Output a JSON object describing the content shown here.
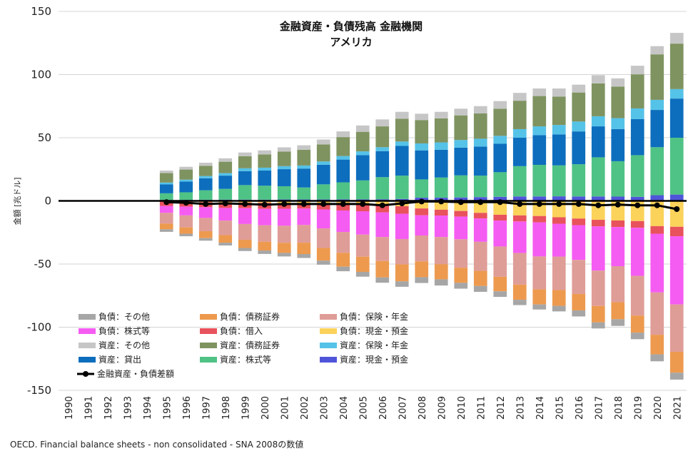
{
  "chart_data": {
    "type": "bar",
    "title": "金融資産・負債残高 金融機関",
    "subtitle": "アメリカ",
    "ylabel": "金額 [兆ドル]",
    "xlabel": "",
    "ylim": [
      -150,
      150
    ],
    "yticks": [
      150,
      100,
      50,
      0,
      -50,
      -100,
      -150
    ],
    "grid": true,
    "legend_position": "bottom-left",
    "categories": [
      "1990",
      "1991",
      "1992",
      "1993",
      "1994",
      "1995",
      "1996",
      "1997",
      "1998",
      "1999",
      "2000",
      "2001",
      "2002",
      "2003",
      "2004",
      "2005",
      "2006",
      "2007",
      "2008",
      "2009",
      "2010",
      "2011",
      "2012",
      "2013",
      "2014",
      "2015",
      "2016",
      "2017",
      "2018",
      "2019",
      "2020",
      "2021"
    ],
    "series": [
      {
        "name": "資産：現金・預金",
        "color": "#4f55d9",
        "group": "asset",
        "values": [
          null,
          null,
          null,
          null,
          null,
          0.8,
          0.8,
          0.9,
          1.0,
          1.0,
          1.0,
          1.1,
          1.1,
          1.1,
          1.2,
          1.2,
          1.3,
          1.5,
          2.5,
          2.5,
          2.7,
          3.0,
          3.2,
          3.5,
          3.5,
          3.6,
          3.5,
          3.5,
          3.4,
          3.2,
          4.5,
          5.0
        ]
      },
      {
        "name": "資産：株式等",
        "color": "#4fc285",
        "group": "asset",
        "values": [
          null,
          null,
          null,
          null,
          null,
          5.2,
          6.0,
          7.5,
          8.5,
          11.5,
          11.0,
          10.5,
          9.5,
          12.0,
          13.5,
          15.0,
          17.5,
          18.5,
          14.5,
          16.0,
          17.5,
          17.0,
          19.5,
          24.0,
          25.0,
          24.5,
          25.5,
          31.0,
          28.0,
          33.0,
          38.0,
          45.0
        ]
      },
      {
        "name": "資産：貸出",
        "color": "#0d6ebd",
        "group": "asset",
        "values": [
          null,
          null,
          null,
          null,
          null,
          7.0,
          8.5,
          9.5,
          10.5,
          11.0,
          12.0,
          13.5,
          15.0,
          15.5,
          18.0,
          20.0,
          20.5,
          23.5,
          23.0,
          22.0,
          22.0,
          23.0,
          22.5,
          22.5,
          23.5,
          24.5,
          26.0,
          24.5,
          25.5,
          28.5,
          29.5,
          31.0
        ]
      },
      {
        "name": "資産：保険・年金",
        "color": "#55c2e8",
        "group": "asset",
        "values": [
          null,
          null,
          null,
          null,
          null,
          1.5,
          1.5,
          1.8,
          2.0,
          2.3,
          2.3,
          2.4,
          2.4,
          2.6,
          2.8,
          3.0,
          3.2,
          3.5,
          5.5,
          5.8,
          6.0,
          6.2,
          6.3,
          6.8,
          7.0,
          7.5,
          7.8,
          8.0,
          8.6,
          8.5,
          8.0,
          7.5
        ]
      },
      {
        "name": "資産：債務証券",
        "color": "#7f9360",
        "group": "asset",
        "values": [
          null,
          null,
          null,
          null,
          null,
          7.5,
          8.0,
          8.0,
          9.0,
          9.5,
          10.5,
          11.5,
          12.5,
          13.5,
          15.0,
          15.5,
          16.5,
          18.0,
          18.5,
          19.0,
          19.5,
          20.0,
          21.5,
          22.5,
          24.0,
          22.5,
          23.0,
          26.0,
          25.0,
          27.0,
          36.0,
          36.0
        ]
      },
      {
        "name": "資産：その他",
        "color": "#c6c6c6",
        "group": "asset",
        "values": [
          null,
          null,
          null,
          null,
          null,
          2.0,
          2.2,
          2.5,
          2.7,
          3.0,
          3.2,
          3.4,
          3.5,
          3.9,
          4.5,
          5.0,
          5.5,
          5.5,
          5.0,
          5.2,
          5.3,
          5.8,
          6.0,
          6.2,
          6.0,
          6.4,
          6.2,
          6.5,
          6.5,
          6.8,
          6.5,
          8.5
        ]
      },
      {
        "name": "負債：現金・預金",
        "color": "#fbd25a",
        "group": "liability",
        "values": [
          null,
          null,
          null,
          null,
          null,
          -0.5,
          -0.7,
          -1.0,
          -1.2,
          -1.3,
          -1.5,
          -1.7,
          -1.9,
          -2.2,
          -2.6,
          -3.0,
          -3.5,
          -4.2,
          -6.0,
          -7.0,
          -8.0,
          -9.5,
          -11.0,
          -11.5,
          -12.0,
          -13.0,
          -14.0,
          -15.0,
          -15.5,
          -16.0,
          -20.0,
          -20.5
        ]
      },
      {
        "name": "負債：借入",
        "color": "#e8525c",
        "group": "liability",
        "values": [
          null,
          null,
          null,
          null,
          null,
          -3.5,
          -3.8,
          -4.0,
          -4.4,
          -4.5,
          -4.8,
          -4.5,
          -4.2,
          -4.6,
          -5.0,
          -5.2,
          -5.6,
          -6.0,
          -5.4,
          -4.6,
          -4.4,
          -4.4,
          -4.6,
          -4.8,
          -5.0,
          -5.1,
          -5.2,
          -5.2,
          -5.2,
          -5.3,
          -6.0,
          -7.5
        ]
      },
      {
        "name": "負債：株式等",
        "color": "#f55cf2",
        "group": "liability",
        "values": [
          null,
          null,
          null,
          null,
          null,
          -5.5,
          -7.0,
          -8.5,
          -10.0,
          -12.5,
          -13.0,
          -13.5,
          -13.0,
          -15.0,
          -17.0,
          -18.5,
          -19.5,
          -20.0,
          -16.0,
          -17.0,
          -18.0,
          -18.5,
          -20.5,
          -25.0,
          -27.0,
          -26.0,
          -27.5,
          -35.0,
          -31.0,
          -38.0,
          -46.5,
          -54.0
        ]
      },
      {
        "name": "負債：保険・年金",
        "color": "#df9d98",
        "group": "liability",
        "values": [
          null,
          null,
          null,
          null,
          null,
          -8.5,
          -9.5,
          -10.5,
          -11.5,
          -12.5,
          -13.0,
          -13.5,
          -14.0,
          -15.5,
          -16.5,
          -17.5,
          -19.0,
          -20.0,
          -20.5,
          -21.5,
          -22.5,
          -23.0,
          -24.0,
          -25.0,
          -26.0,
          -26.5,
          -27.0,
          -28.0,
          -28.5,
          -31.5,
          -33.5,
          -37.5
        ]
      },
      {
        "name": "負債：債務証券",
        "color": "#ed9a4f",
        "group": "liability",
        "values": [
          null,
          null,
          null,
          null,
          null,
          -4.5,
          -5.0,
          -5.5,
          -6.0,
          -6.5,
          -7.0,
          -8.0,
          -9.0,
          -10.0,
          -11.0,
          -12.0,
          -13.0,
          -13.5,
          -12.5,
          -12.0,
          -12.0,
          -12.0,
          -11.5,
          -12.0,
          -12.0,
          -12.5,
          -13.0,
          -13.0,
          -13.5,
          -13.5,
          -15.5,
          -16.5
        ]
      },
      {
        "name": "負債：その他",
        "color": "#a6a6a6",
        "group": "liability",
        "values": [
          null,
          null,
          null,
          null,
          null,
          -2.0,
          -2.0,
          -2.0,
          -2.2,
          -2.4,
          -2.7,
          -2.8,
          -3.1,
          -3.2,
          -3.6,
          -3.8,
          -4.2,
          -4.3,
          -4.6,
          -4.9,
          -4.6,
          -4.6,
          -4.4,
          -4.2,
          -4.0,
          -4.4,
          -4.8,
          -4.8,
          -5.3,
          -5.2,
          -5.5,
          -5.5
        ]
      }
    ],
    "net": {
      "name": "金融資産・負債差額",
      "color": "#000000",
      "values": [
        null,
        null,
        null,
        null,
        null,
        -1.0,
        -1.5,
        -2.5,
        -2.0,
        -2.5,
        -3.0,
        -2.5,
        -2.5,
        -2.5,
        -2.5,
        -2.5,
        -3.5,
        -2.0,
        -0.5,
        -0.5,
        -1.0,
        -1.0,
        -1.0,
        -2.5,
        -2.5,
        -2.5,
        -2.5,
        -3.5,
        -3.0,
        -3.5,
        -3.5,
        -6.5
      ]
    },
    "legend_order": [
      "負債：その他",
      "負債：債務証券",
      "負債：保険・年金",
      "負債：株式等",
      "負債：借入",
      "負債：現金・預金",
      "資産：その他",
      "資産：債務証券",
      "資産：保険・年金",
      "資産：貸出",
      "資産：株式等",
      "資産：現金・預金",
      "金融資産・負債差額"
    ]
  },
  "source_note": "OECD. Financial balance sheets - non consolidated - SNA 2008の数値"
}
